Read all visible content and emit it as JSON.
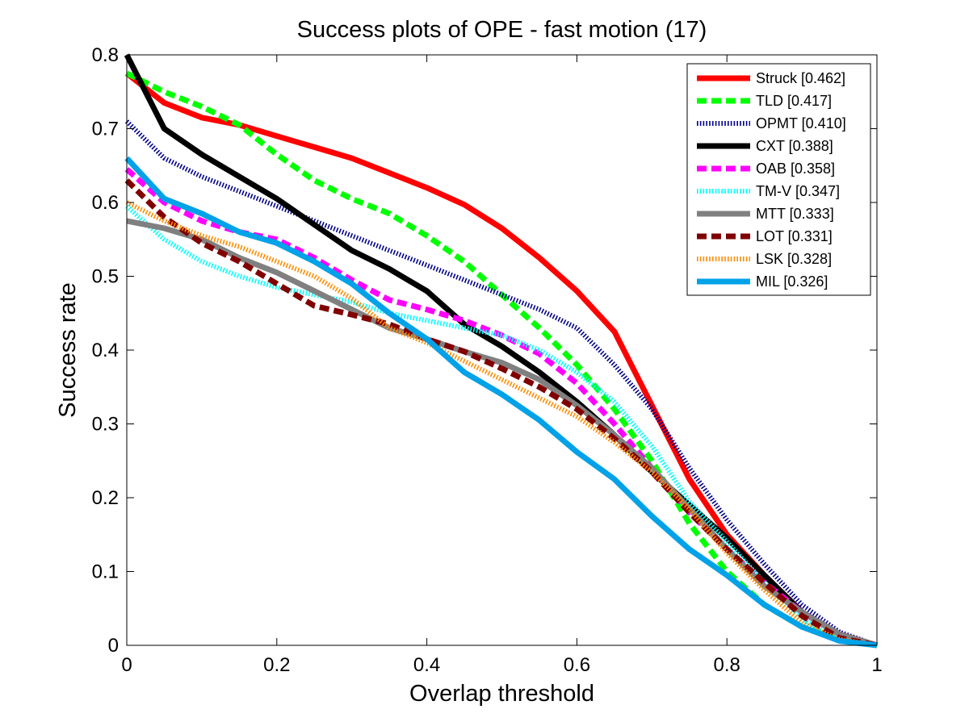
{
  "chart_data": {
    "type": "line",
    "title": "Success plots of OPE - fast motion (17)",
    "xlabel": "Overlap threshold",
    "ylabel": "Success rate",
    "xlim": [
      0,
      1
    ],
    "ylim": [
      0,
      0.8
    ],
    "xticks": [
      0,
      0.2,
      0.4,
      0.6,
      0.8,
      1
    ],
    "xtick_labels": [
      "0",
      "0.2",
      "0.4",
      "0.6",
      "0.8",
      "1"
    ],
    "yticks": [
      0,
      0.1,
      0.2,
      0.3,
      0.4,
      0.5,
      0.6,
      0.7,
      0.8
    ],
    "ytick_labels": [
      "0",
      "0.1",
      "0.2",
      "0.3",
      "0.4",
      "0.5",
      "0.6",
      "0.7",
      "0.8"
    ],
    "grid": false,
    "legend_position": "top-right",
    "x": [
      0,
      0.05,
      0.1,
      0.15,
      0.2,
      0.25,
      0.3,
      0.35,
      0.4,
      0.45,
      0.5,
      0.55,
      0.6,
      0.65,
      0.7,
      0.75,
      0.8,
      0.85,
      0.9,
      0.95,
      1
    ],
    "series": [
      {
        "name": "Struck [0.462]",
        "color": "#ff0000",
        "style": "solid",
        "values": [
          0.775,
          0.735,
          0.715,
          0.705,
          0.69,
          0.675,
          0.66,
          0.64,
          0.62,
          0.597,
          0.565,
          0.525,
          0.48,
          0.425,
          0.325,
          0.225,
          0.15,
          0.095,
          0.045,
          0.015,
          0.0
        ]
      },
      {
        "name": "TLD [0.417]",
        "color": "#00ff00",
        "style": "dashed",
        "values": [
          0.775,
          0.75,
          0.73,
          0.705,
          0.665,
          0.63,
          0.605,
          0.585,
          0.555,
          0.52,
          0.475,
          0.43,
          0.38,
          0.32,
          0.25,
          0.165,
          0.1,
          0.055,
          0.025,
          0.008,
          0.0
        ]
      },
      {
        "name": "OPMT [0.410]",
        "color": "#00008b",
        "style": "dotted",
        "values": [
          0.71,
          0.66,
          0.635,
          0.615,
          0.595,
          0.575,
          0.555,
          0.535,
          0.515,
          0.495,
          0.475,
          0.455,
          0.43,
          0.38,
          0.32,
          0.24,
          0.17,
          0.11,
          0.055,
          0.018,
          0.0
        ]
      },
      {
        "name": "CXT [0.388]",
        "color": "#000000",
        "style": "solid",
        "values": [
          0.8,
          0.7,
          0.665,
          0.635,
          0.605,
          0.57,
          0.535,
          0.51,
          0.48,
          0.435,
          0.405,
          0.37,
          0.33,
          0.285,
          0.235,
          0.19,
          0.145,
          0.095,
          0.045,
          0.015,
          0.0
        ]
      },
      {
        "name": "OAB [0.358]",
        "color": "#ff00ff",
        "style": "dashed",
        "values": [
          0.645,
          0.6,
          0.575,
          0.56,
          0.55,
          0.525,
          0.495,
          0.468,
          0.455,
          0.44,
          0.42,
          0.395,
          0.355,
          0.3,
          0.24,
          0.18,
          0.13,
          0.085,
          0.045,
          0.015,
          0.0
        ]
      },
      {
        "name": "TM-V [0.347]",
        "color": "#00ffff",
        "style": "dotted",
        "values": [
          0.595,
          0.55,
          0.52,
          0.5,
          0.485,
          0.475,
          0.465,
          0.45,
          0.44,
          0.43,
          0.42,
          0.4,
          0.37,
          0.33,
          0.27,
          0.195,
          0.14,
          0.085,
          0.035,
          0.01,
          0.0
        ]
      },
      {
        "name": "MTT [0.333]",
        "color": "#808080",
        "style": "solid",
        "values": [
          0.575,
          0.565,
          0.55,
          0.525,
          0.505,
          0.48,
          0.455,
          0.43,
          0.415,
          0.398,
          0.383,
          0.36,
          0.325,
          0.285,
          0.24,
          0.185,
          0.13,
          0.08,
          0.045,
          0.015,
          0.0
        ]
      },
      {
        "name": "LOT [0.331]",
        "color": "#800000",
        "style": "dashed",
        "values": [
          0.63,
          0.58,
          0.545,
          0.52,
          0.49,
          0.46,
          0.448,
          0.435,
          0.415,
          0.398,
          0.375,
          0.35,
          0.32,
          0.28,
          0.235,
          0.18,
          0.13,
          0.085,
          0.04,
          0.01,
          0.0
        ]
      },
      {
        "name": "LSK [0.328]",
        "color": "#ff8c00",
        "style": "dotted",
        "values": [
          0.6,
          0.575,
          0.555,
          0.54,
          0.52,
          0.5,
          0.47,
          0.43,
          0.41,
          0.385,
          0.36,
          0.335,
          0.31,
          0.275,
          0.235,
          0.185,
          0.125,
          0.075,
          0.03,
          0.008,
          0.0
        ]
      },
      {
        "name": "MIL [0.326]",
        "color": "#00a2e8",
        "style": "solid",
        "values": [
          0.66,
          0.605,
          0.585,
          0.56,
          0.545,
          0.52,
          0.49,
          0.45,
          0.415,
          0.37,
          0.34,
          0.305,
          0.262,
          0.225,
          0.175,
          0.13,
          0.095,
          0.055,
          0.025,
          0.006,
          0.0
        ]
      }
    ]
  }
}
